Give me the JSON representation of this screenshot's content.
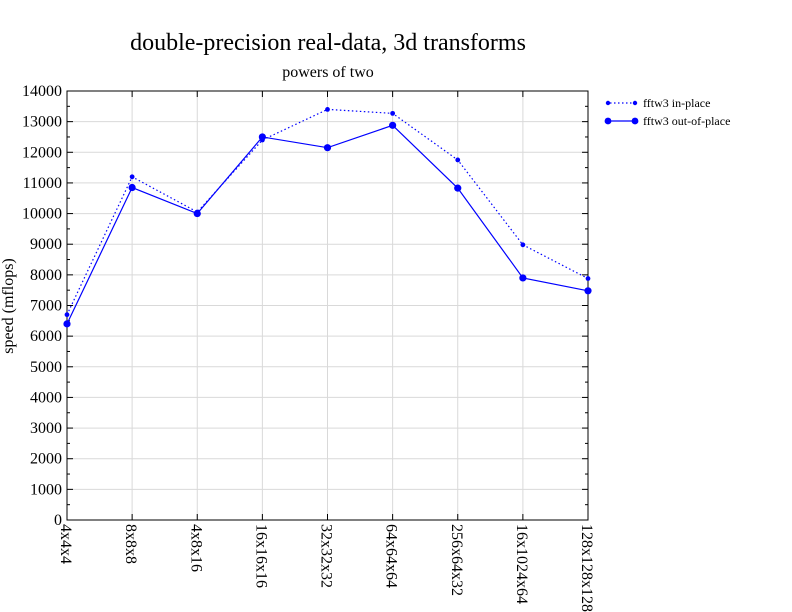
{
  "chart_data": {
    "type": "line",
    "title": "double-precision real-data, 3d transforms",
    "subtitle": "powers of two",
    "xlabel": "",
    "ylabel": "speed (mflops)",
    "categories": [
      "4x4x4",
      "8x8x8",
      "4x8x16",
      "16x16x16",
      "32x32x32",
      "64x64x64",
      "256x64x32",
      "16x1024x64",
      "128x128x128"
    ],
    "ylim": [
      0,
      14000
    ],
    "yticks": [
      0,
      1000,
      2000,
      3000,
      4000,
      5000,
      6000,
      7000,
      8000,
      9000,
      10000,
      11000,
      12000,
      13000,
      14000
    ],
    "grid": true,
    "legend_position": "top-right, outside plot",
    "series": [
      {
        "name": "fftw3 in-place",
        "style": "dotted",
        "color": "#0000ff",
        "values": [
          6700,
          11200,
          10050,
          12400,
          13400,
          13270,
          11750,
          8980,
          7880
        ]
      },
      {
        "name": "fftw3 out-of-place",
        "style": "solid",
        "color": "#0000ff",
        "values": [
          6400,
          10850,
          10000,
          12500,
          12150,
          12880,
          10830,
          7900,
          7480
        ]
      }
    ]
  }
}
